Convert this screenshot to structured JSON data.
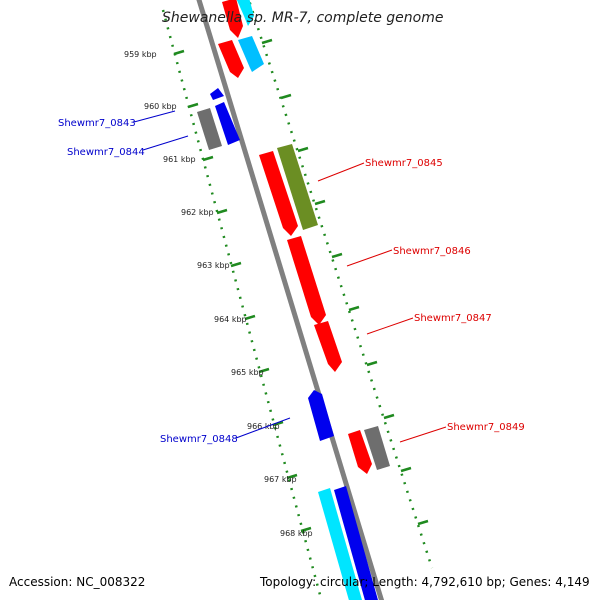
{
  "title": "Shewanella sp. MR-7, complete genome",
  "footer": {
    "accession": "Accession: NC_008322",
    "summary": "Topology: circular; Length: 4,792,610 bp; Genes: 4,149"
  },
  "colors": {
    "backbone": "#808080",
    "tick": "#1f8a1f",
    "red": "#ff0000",
    "blue": "#0000ee",
    "gray": "#6e6e6e",
    "olive": "#6b8e23",
    "cyan": "#00e5ff",
    "forward_label": "#dd0000",
    "reverse_label": "#0000cc"
  },
  "ticks": [
    "959 kbp",
    "960 kbp",
    "961 kbp",
    "962 kbp",
    "963 kbp",
    "964 kbp",
    "965 kbp",
    "966 kbp",
    "967 kbp",
    "968 kbp"
  ],
  "gene_labels": [
    {
      "text": "Shewmr7_0843",
      "strand": "reverse"
    },
    {
      "text": "Shewmr7_0844",
      "strand": "reverse"
    },
    {
      "text": "Shewmr7_0845",
      "strand": "forward"
    },
    {
      "text": "Shewmr7_0846",
      "strand": "forward"
    },
    {
      "text": "Shewmr7_0847",
      "strand": "forward"
    },
    {
      "text": "Shewmr7_0848",
      "strand": "reverse"
    },
    {
      "text": "Shewmr7_0849",
      "strand": "forward"
    }
  ]
}
